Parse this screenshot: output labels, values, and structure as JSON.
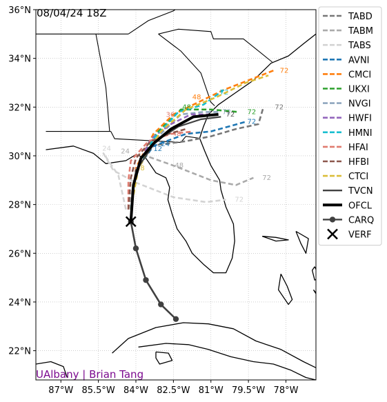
{
  "map": {
    "date_label": "08/04/24 18Z",
    "credit": "UAlbany | Brian Tang",
    "credit_color": "#7b0a8f",
    "x_ticks": [
      "87°W",
      "85.5°W",
      "84°W",
      "82.5°W",
      "81°W",
      "79.5°W",
      "78°W"
    ],
    "y_ticks": [
      "36°N",
      "34°N",
      "32°N",
      "30°N",
      "28°N",
      "26°N",
      "24°N",
      "22°N"
    ],
    "xlim": [
      -88.0,
      -76.8
    ],
    "ylim": [
      20.8,
      36.0
    ]
  },
  "legend": [
    {
      "id": "tabd",
      "label": "TABD",
      "color": "#777777",
      "style": "dash"
    },
    {
      "id": "tabm",
      "label": "TABM",
      "color": "#aaaaaa",
      "style": "dash"
    },
    {
      "id": "tabs",
      "label": "TABS",
      "color": "#d3d3d3",
      "style": "dash"
    },
    {
      "id": "avni",
      "label": "AVNI",
      "color": "#1f77b4",
      "style": "dash"
    },
    {
      "id": "cmci",
      "label": "CMCI",
      "color": "#ff7f0e",
      "style": "dash"
    },
    {
      "id": "ukxi",
      "label": "UKXI",
      "color": "#2ca02c",
      "style": "dash"
    },
    {
      "id": "nvgi",
      "label": "NVGI",
      "color": "#8fa6bf",
      "style": "dash"
    },
    {
      "id": "hwfi",
      "label": "HWFI",
      "color": "#9467bd",
      "style": "dash"
    },
    {
      "id": "hmni",
      "label": "HMNI",
      "color": "#17becf",
      "style": "dash"
    },
    {
      "id": "hfai",
      "label": "HFAI",
      "color": "#e07b6f",
      "style": "dash"
    },
    {
      "id": "hfbi",
      "label": "HFBI",
      "color": "#8c564b",
      "style": "dash"
    },
    {
      "id": "ctci",
      "label": "CTCI",
      "color": "#dbbe3a",
      "style": "dash"
    },
    {
      "id": "tvcn",
      "label": "TVCN",
      "color": "#404040",
      "style": "solid"
    },
    {
      "id": "ofcl",
      "label": "OFCL",
      "color": "#000000",
      "style": "thick"
    },
    {
      "id": "carq",
      "label": "CARQ",
      "color": "#404040",
      "style": "marker"
    },
    {
      "id": "verf",
      "label": "VERF",
      "color": "#000000",
      "style": "x"
    }
  ],
  "tracks": [
    {
      "id": "tabd",
      "color": "#777777",
      "points": [
        [
          -84.2,
          27.8
        ],
        [
          -84.0,
          29.3
        ],
        [
          -83.5,
          30.4
        ],
        [
          -82.0,
          30.6
        ],
        [
          -81.0,
          30.8
        ],
        [
          -80.0,
          31.1
        ],
        [
          -79.1,
          31.3
        ],
        [
          -78.9,
          32.0
        ]
      ],
      "labels": [
        {
          "text": "72",
          "at": [
            -78.5,
            32.0
          ]
        }
      ]
    },
    {
      "id": "tabm",
      "color": "#aaaaaa",
      "points": [
        [
          -84.3,
          27.8
        ],
        [
          -84.0,
          29.3
        ],
        [
          -83.6,
          30.0
        ],
        [
          -82.5,
          29.6
        ],
        [
          -81.0,
          29.0
        ],
        [
          -80.0,
          28.8
        ],
        [
          -79.3,
          29.1
        ]
      ],
      "labels": [
        {
          "text": "48",
          "at": [
            -82.5,
            29.6
          ]
        },
        {
          "text": "72",
          "at": [
            -79.0,
            29.1
          ]
        }
      ]
    },
    {
      "id": "tabs",
      "color": "#d3d3d3",
      "points": [
        [
          -84.4,
          27.8
        ],
        [
          -84.7,
          29.2
        ],
        [
          -85.3,
          30.1
        ],
        [
          -84.9,
          29.4
        ],
        [
          -84.0,
          28.9
        ],
        [
          -82.5,
          28.3
        ],
        [
          -81.2,
          28.1
        ],
        [
          -80.4,
          28.2
        ]
      ],
      "labels": [
        {
          "text": "24",
          "at": [
            -85.4,
            30.3
          ]
        },
        {
          "text": "72",
          "at": [
            -80.1,
            28.2
          ]
        }
      ]
    },
    {
      "id": "avni",
      "color": "#1f77b4",
      "points": [
        [
          -84.2,
          27.8
        ],
        [
          -84.0,
          29.4
        ],
        [
          -83.3,
          30.4
        ],
        [
          -82.0,
          30.9
        ],
        [
          -81.0,
          31.0
        ],
        [
          -80.3,
          31.2
        ],
        [
          -79.6,
          31.4
        ]
      ],
      "labels": [
        {
          "text": "72",
          "at": [
            -79.6,
            31.4
          ]
        }
      ]
    },
    {
      "id": "cmci",
      "color": "#ff7f0e",
      "points": [
        [
          -84.2,
          27.8
        ],
        [
          -84.0,
          29.5
        ],
        [
          -83.3,
          30.9
        ],
        [
          -82.5,
          31.7
        ],
        [
          -81.5,
          32.2
        ],
        [
          -80.5,
          32.7
        ],
        [
          -79.5,
          33.1
        ],
        [
          -78.5,
          33.5
        ]
      ],
      "labels": [
        {
          "text": "48",
          "at": [
            -81.8,
            32.4
          ]
        },
        {
          "text": "72",
          "at": [
            -78.3,
            33.5
          ]
        }
      ]
    },
    {
      "id": "ukxi",
      "color": "#2ca02c",
      "points": [
        [
          -84.2,
          27.8
        ],
        [
          -84.0,
          29.4
        ],
        [
          -83.2,
          30.9
        ],
        [
          -82.2,
          31.9
        ],
        [
          -81.0,
          31.9
        ],
        [
          -79.9,
          31.8
        ]
      ],
      "labels": [
        {
          "text": "48",
          "at": [
            -82.2,
            32.0
          ]
        },
        {
          "text": "72",
          "at": [
            -79.6,
            31.8
          ]
        }
      ]
    },
    {
      "id": "nvgi",
      "color": "#8fa6bf",
      "points": [
        [
          -84.2,
          27.8
        ],
        [
          -84.0,
          29.4
        ],
        [
          -83.1,
          30.8
        ],
        [
          -82.2,
          31.7
        ],
        [
          -81.3,
          31.8
        ],
        [
          -80.7,
          31.8
        ]
      ],
      "labels": [
        {
          "text": "72",
          "at": [
            -80.6,
            31.8
          ]
        }
      ]
    },
    {
      "id": "hwfi",
      "color": "#9467bd",
      "points": [
        [
          -84.2,
          27.8
        ],
        [
          -84.0,
          29.4
        ],
        [
          -83.4,
          30.7
        ],
        [
          -82.6,
          31.3
        ],
        [
          -81.8,
          31.7
        ],
        [
          -81.1,
          31.7
        ]
      ],
      "labels": []
    },
    {
      "id": "hmni",
      "color": "#17becf",
      "points": [
        [
          -84.2,
          27.8
        ],
        [
          -84.0,
          29.3
        ],
        [
          -83.3,
          30.7
        ],
        [
          -82.3,
          31.8
        ],
        [
          -81.3,
          32.1
        ],
        [
          -80.9,
          32.4
        ],
        [
          -80.5,
          32.7
        ]
      ],
      "labels": [
        {
          "text": "72",
          "at": [
            -80.7,
            32.6
          ]
        }
      ]
    },
    {
      "id": "hfai",
      "color": "#e07b6f",
      "points": [
        [
          -84.3,
          27.8
        ],
        [
          -84.3,
          29.0
        ],
        [
          -84.2,
          29.8
        ],
        [
          -83.5,
          30.6
        ],
        [
          -82.6,
          30.9
        ],
        [
          -81.7,
          31.0
        ]
      ],
      "labels": [
        {
          "text": "48",
          "at": [
            -82.6,
            30.9
          ]
        }
      ]
    },
    {
      "id": "hfbi",
      "color": "#8c564b",
      "points": [
        [
          -84.3,
          27.8
        ],
        [
          -84.2,
          29.1
        ],
        [
          -84.0,
          29.9
        ],
        [
          -83.4,
          30.6
        ],
        [
          -82.7,
          30.9
        ],
        [
          -82.0,
          31.1
        ]
      ],
      "labels": []
    },
    {
      "id": "ctci",
      "color": "#dbbe3a",
      "points": [
        [
          -84.2,
          27.8
        ],
        [
          -83.9,
          29.5
        ],
        [
          -83.0,
          31.0
        ],
        [
          -82.0,
          31.9
        ],
        [
          -80.8,
          32.4
        ],
        [
          -79.6,
          33.0
        ],
        [
          -78.7,
          33.3
        ]
      ],
      "labels": []
    },
    {
      "id": "tvcn",
      "color": "#404040",
      "points": [
        [
          -84.2,
          27.8
        ],
        [
          -84.0,
          29.4
        ],
        [
          -83.2,
          30.6
        ],
        [
          -82.3,
          31.2
        ],
        [
          -81.4,
          31.5
        ],
        [
          -80.6,
          31.6
        ]
      ],
      "labels": []
    }
  ],
  "ofcl": {
    "points": [
      [
        -84.2,
        27.3
      ],
      [
        -84.1,
        28.8
      ],
      [
        -83.8,
        29.9
      ],
      [
        -83.3,
        30.5
      ],
      [
        -82.6,
        31.1
      ],
      [
        -81.7,
        31.6
      ],
      [
        -80.7,
        31.7
      ]
    ],
    "labels": [
      {
        "text": "72",
        "at": [
          -80.4,
          31.7
        ]
      }
    ]
  },
  "carq": {
    "points": [
      [
        -84.2,
        27.3
      ],
      [
        -84.0,
        26.2
      ],
      [
        -83.6,
        24.9
      ],
      [
        -83.0,
        23.9
      ],
      [
        -82.4,
        23.3
      ]
    ]
  },
  "verf": {
    "points": [
      [
        -84.2,
        27.3
      ]
    ]
  },
  "tau_labels": [
    {
      "text": "12",
      "at": [
        -83.3,
        30.2
      ],
      "color": "#1f77b4"
    },
    {
      "text": "24",
      "at": [
        -83.0,
        30.4
      ],
      "color": "#1f77b4"
    },
    {
      "text": "36",
      "at": [
        -82.8,
        31.6
      ],
      "color": "#e07b6f"
    },
    {
      "text": "48",
      "at": [
        -84.0,
        29.4
      ],
      "color": "#dbbe3a"
    },
    {
      "text": "24",
      "at": [
        -84.6,
        30.1
      ],
      "color": "#aaaaaa"
    }
  ],
  "land": [
    {
      "id": "florida",
      "points": [
        [
          -87.6,
          30.25
        ],
        [
          -86.5,
          30.4
        ],
        [
          -85.7,
          30.1
        ],
        [
          -85.2,
          29.68
        ],
        [
          -84.4,
          29.8
        ],
        [
          -84.0,
          30.05
        ],
        [
          -83.6,
          29.9
        ],
        [
          -83.2,
          29.3
        ],
        [
          -82.8,
          29.1
        ],
        [
          -82.65,
          28.7
        ],
        [
          -82.72,
          28.2
        ],
        [
          -82.55,
          27.6
        ],
        [
          -82.35,
          27.0
        ],
        [
          -82.0,
          26.5
        ],
        [
          -81.75,
          26.0
        ],
        [
          -81.3,
          25.55
        ],
        [
          -80.9,
          25.2
        ],
        [
          -80.4,
          25.2
        ],
        [
          -80.15,
          25.8
        ],
        [
          -80.05,
          26.5
        ],
        [
          -80.1,
          27.2
        ],
        [
          -80.4,
          27.9
        ],
        [
          -80.6,
          28.6
        ],
        [
          -80.65,
          29.0
        ],
        [
          -81.0,
          29.6
        ],
        [
          -81.25,
          30.2
        ],
        [
          -81.45,
          30.72
        ]
      ]
    },
    {
      "id": "ga-sc-nc-coast",
      "points": [
        [
          -81.45,
          30.72
        ],
        [
          -81.3,
          31.2
        ],
        [
          -81.1,
          31.7
        ],
        [
          -80.7,
          32.1
        ],
        [
          -80.0,
          32.6
        ],
        [
          -79.3,
          33.1
        ],
        [
          -78.6,
          33.8
        ],
        [
          -77.9,
          34.1
        ],
        [
          -77.3,
          34.6
        ],
        [
          -76.8,
          35.0
        ]
      ]
    },
    {
      "id": "cuba",
      "points": [
        [
          -84.95,
          21.9
        ],
        [
          -84.3,
          22.5
        ],
        [
          -83.2,
          22.95
        ],
        [
          -82.1,
          23.15
        ],
        [
          -81.1,
          23.1
        ],
        [
          -80.1,
          22.9
        ],
        [
          -79.2,
          22.4
        ],
        [
          -78.2,
          22.05
        ],
        [
          -77.3,
          21.55
        ],
        [
          -76.8,
          21.3
        ]
      ]
    },
    {
      "id": "cuba-south",
      "points": [
        [
          -83.9,
          22.15
        ],
        [
          -82.8,
          22.3
        ],
        [
          -81.9,
          22.25
        ],
        [
          -81.1,
          22.05
        ],
        [
          -80.2,
          21.75
        ],
        [
          -79.3,
          21.55
        ],
        [
          -78.5,
          21.45
        ],
        [
          -77.8,
          21.2
        ],
        [
          -77.2,
          20.9
        ],
        [
          -76.8,
          20.8
        ]
      ]
    },
    {
      "id": "isle-of-youth",
      "points": [
        [
          -83.2,
          21.95
        ],
        [
          -82.7,
          21.9
        ],
        [
          -82.55,
          21.6
        ],
        [
          -83.05,
          21.45
        ],
        [
          -83.2,
          21.7
        ],
        [
          -83.2,
          21.95
        ]
      ]
    },
    {
      "id": "andros",
      "points": [
        [
          -78.2,
          25.15
        ],
        [
          -77.95,
          24.65
        ],
        [
          -77.75,
          24.1
        ],
        [
          -77.9,
          23.9
        ],
        [
          -78.3,
          24.5
        ],
        [
          -78.2,
          25.15
        ]
      ]
    },
    {
      "id": "grand-bahama",
      "points": [
        [
          -78.95,
          26.7
        ],
        [
          -78.4,
          26.65
        ],
        [
          -77.9,
          26.55
        ],
        [
          -78.4,
          26.5
        ],
        [
          -78.95,
          26.7
        ]
      ]
    },
    {
      "id": "abaco",
      "points": [
        [
          -77.6,
          26.9
        ],
        [
          -77.1,
          26.6
        ],
        [
          -77.2,
          26.0
        ],
        [
          -77.4,
          26.4
        ],
        [
          -77.6,
          26.9
        ]
      ]
    },
    {
      "id": "eleuthera",
      "points": [
        [
          -76.85,
          25.45
        ],
        [
          -76.65,
          25.0
        ],
        [
          -76.85,
          24.9
        ],
        [
          -76.95,
          25.3
        ],
        [
          -76.85,
          25.45
        ]
      ]
    },
    {
      "id": "exuma",
      "points": [
        [
          -76.9,
          24.5
        ],
        [
          -76.5,
          24.0
        ],
        [
          -76.2,
          23.6
        ],
        [
          -76.4,
          23.7
        ],
        [
          -76.9,
          24.5
        ]
      ]
    },
    {
      "id": "yucatan",
      "points": [
        [
          -88.0,
          21.45
        ],
        [
          -87.4,
          21.55
        ],
        [
          -86.9,
          21.35
        ],
        [
          -86.75,
          20.9
        ]
      ]
    }
  ],
  "borders": [
    {
      "id": "ms-al",
      "points": [
        [
          -88.0,
          35.0
        ],
        [
          -88.15,
          30.4
        ]
      ]
    },
    {
      "id": "tn-south",
      "points": [
        [
          -88.0,
          35.0
        ],
        [
          -85.6,
          35.0
        ],
        [
          -84.3,
          35.0
        ]
      ]
    },
    {
      "id": "al-ga",
      "points": [
        [
          -85.6,
          35.0
        ],
        [
          -85.2,
          32.8
        ],
        [
          -85.05,
          31.0
        ]
      ]
    },
    {
      "id": "al-fl",
      "points": [
        [
          -87.6,
          31.0
        ],
        [
          -85.0,
          31.0
        ]
      ]
    },
    {
      "id": "ga-fl",
      "points": [
        [
          -85.0,
          31.0
        ],
        [
          -84.85,
          30.7
        ],
        [
          -82.2,
          30.55
        ],
        [
          -82.0,
          30.8
        ],
        [
          -81.45,
          30.72
        ]
      ]
    },
    {
      "id": "ga-sc",
      "points": [
        [
          -83.1,
          35.0
        ],
        [
          -82.2,
          34.3
        ],
        [
          -81.4,
          33.4
        ],
        [
          -81.0,
          32.2
        ],
        [
          -80.85,
          32.05
        ]
      ]
    },
    {
      "id": "nc-sc",
      "points": [
        [
          -83.1,
          35.0
        ],
        [
          -82.3,
          35.2
        ],
        [
          -81.0,
          35.1
        ],
        [
          -80.9,
          34.8
        ],
        [
          -79.7,
          34.8
        ],
        [
          -78.55,
          33.85
        ]
      ]
    },
    {
      "id": "va-nc",
      "points": [
        [
          -81.6,
          36.6
        ],
        [
          -80.0,
          36.55
        ],
        [
          -78.0,
          36.55
        ],
        [
          -76.9,
          36.55
        ]
      ]
    },
    {
      "id": "ky-tn",
      "points": [
        [
          -88.0,
          36.5
        ],
        [
          -83.7,
          36.6
        ],
        [
          -81.6,
          36.6
        ]
      ]
    },
    {
      "id": "tn-nc",
      "points": [
        [
          -84.3,
          35.0
        ],
        [
          -83.5,
          35.55
        ],
        [
          -82.5,
          35.95
        ],
        [
          -81.6,
          36.6
        ]
      ]
    }
  ]
}
